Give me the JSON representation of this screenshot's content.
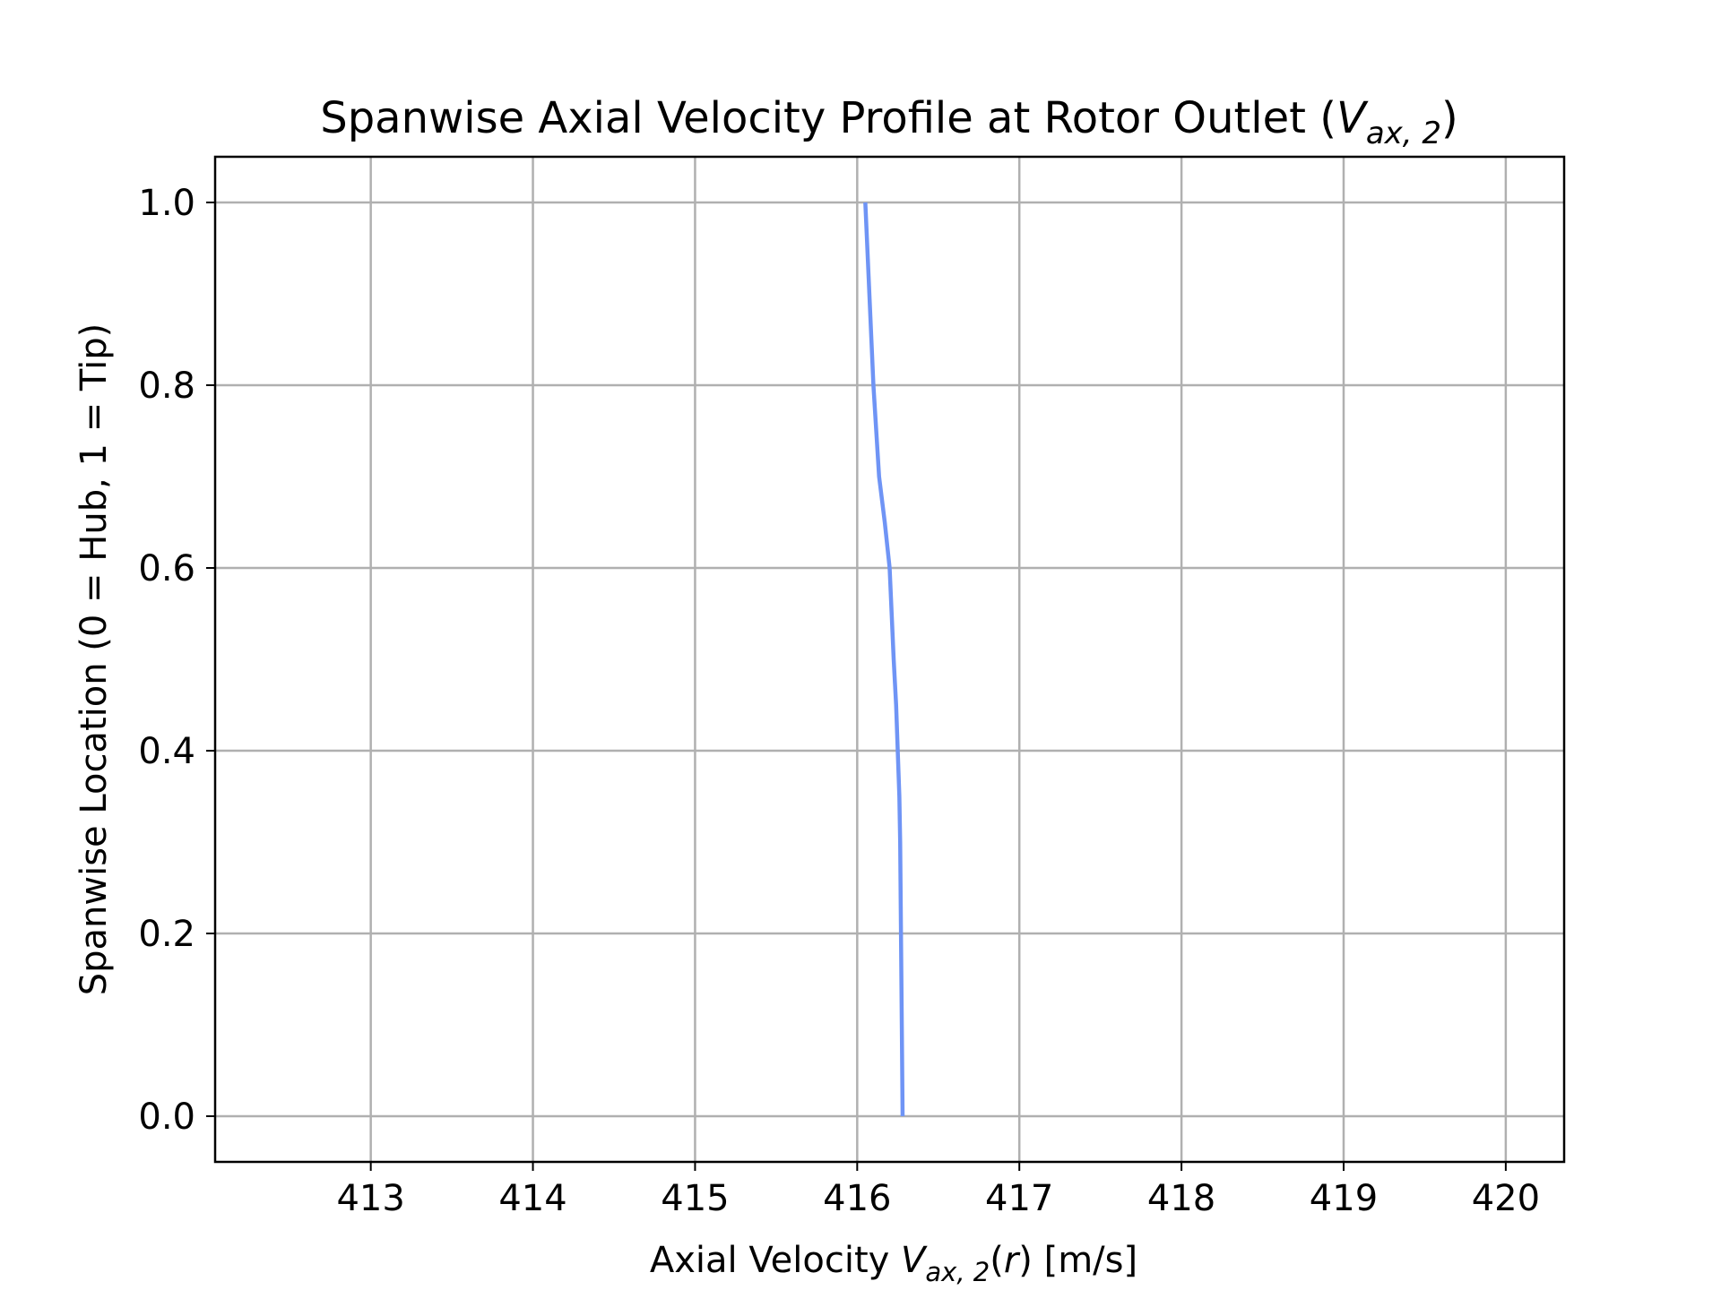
{
  "chart_data": {
    "type": "line",
    "title_parts": [
      "Spanwise Axial Velocity Profile at Rotor Outlet (",
      "V",
      "ax, 2",
      ")"
    ],
    "xlabel_parts": [
      "Axial Velocity ",
      "V",
      "ax, 2",
      "(",
      "r",
      ") [m/s]"
    ],
    "ylabel": "Spanwise Location (0 = Hub, 1 = Tip)",
    "xlim": [
      412.04,
      420.36
    ],
    "ylim": [
      -0.05,
      1.05
    ],
    "xticks": [
      413,
      414,
      415,
      416,
      417,
      418,
      419,
      420
    ],
    "xtick_labels": [
      "413",
      "414",
      "415",
      "416",
      "417",
      "418",
      "419",
      "420"
    ],
    "yticks": [
      0.0,
      0.2,
      0.4,
      0.6,
      0.8,
      1.0
    ],
    "ytick_labels": [
      "0.0",
      "0.2",
      "0.4",
      "0.6",
      "0.8",
      "1.0"
    ],
    "grid": true,
    "series": [
      {
        "color": "#6f94f5",
        "x": [
          416.28,
          416.275,
          416.27,
          416.265,
          416.26,
          416.25,
          416.24,
          416.225,
          416.2,
          416.17,
          416.135,
          416.1,
          416.075,
          416.05
        ],
        "y": [
          0.0,
          0.1,
          0.2,
          0.3,
          0.35,
          0.4,
          0.45,
          0.5,
          0.6,
          0.65,
          0.7,
          0.8,
          0.9,
          1.0
        ]
      }
    ]
  }
}
